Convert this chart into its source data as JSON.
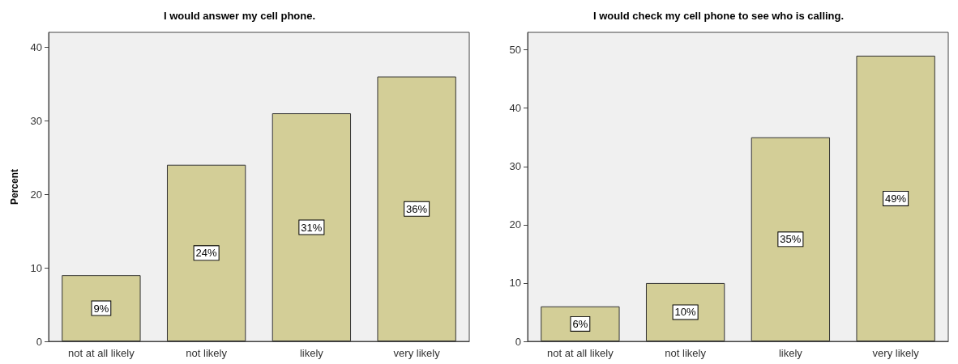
{
  "chart_data": [
    {
      "type": "bar",
      "title": "I would answer my cell phone.",
      "ylabel": "Percent",
      "categories": [
        "not at all likely",
        "not likely",
        "likely",
        "very likely"
      ],
      "values": [
        9,
        24,
        31,
        36
      ],
      "value_labels": [
        "9%",
        "24%",
        "31%",
        "36%"
      ],
      "color": "#d3ce97",
      "ylim": [
        0,
        42
      ],
      "yticks": [
        0,
        10,
        20,
        30,
        40
      ]
    },
    {
      "type": "bar",
      "title": "I would check my cell phone to see who is calling.",
      "categories": [
        "not at all likely",
        "not likely",
        "likely",
        "very likely"
      ],
      "values": [
        6,
        10,
        35,
        49
      ],
      "value_labels": [
        "6%",
        "10%",
        "35%",
        "49%"
      ],
      "color": "#d3ce97",
      "ylim": [
        0,
        53
      ],
      "yticks": [
        0,
        10,
        20,
        30,
        40,
        50
      ]
    }
  ]
}
